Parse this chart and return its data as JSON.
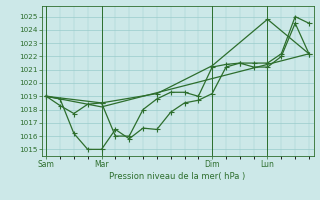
{
  "xlabel": "Pression niveau de la mer( hPa )",
  "bg_color": "#cce8e8",
  "grid_color": "#99cccc",
  "line_color": "#2d6e2d",
  "ylim": [
    1014.5,
    1025.8
  ],
  "yticks": [
    1015,
    1016,
    1017,
    1018,
    1019,
    1020,
    1021,
    1022,
    1023,
    1024,
    1025
  ],
  "xtick_labels": [
    "Sam",
    "Mar",
    "Dim",
    "Lun"
  ],
  "xtick_positions": [
    0,
    24,
    72,
    96
  ],
  "xlim": [
    -2,
    116
  ],
  "vlines": [
    0,
    24,
    72,
    96
  ],
  "line1_x": [
    0,
    6,
    12,
    18,
    24,
    30,
    36,
    42,
    48,
    54,
    60,
    66,
    72,
    78,
    84,
    90,
    96,
    102,
    108,
    114
  ],
  "line1_y": [
    1019.0,
    1018.3,
    1017.7,
    1018.4,
    1018.5,
    1016.0,
    1016.0,
    1018.0,
    1018.8,
    1019.3,
    1019.3,
    1019.0,
    1021.2,
    1021.4,
    1021.5,
    1021.2,
    1021.2,
    1022.0,
    1024.5,
    1022.2
  ],
  "line2_x": [
    0,
    6,
    12,
    18,
    24,
    30,
    36,
    42,
    48,
    54,
    60,
    66,
    72,
    78,
    84,
    90,
    96,
    102,
    108,
    114
  ],
  "line2_y": [
    1019.0,
    1018.8,
    1016.2,
    1015.0,
    1015.0,
    1016.5,
    1015.8,
    1016.6,
    1016.5,
    1017.8,
    1018.5,
    1018.7,
    1019.2,
    1021.2,
    1021.5,
    1021.5,
    1021.5,
    1022.2,
    1025.0,
    1024.5
  ],
  "line3_x": [
    0,
    24,
    48,
    72,
    96,
    114
  ],
  "line3_y": [
    1019.0,
    1018.5,
    1019.2,
    1021.3,
    1024.8,
    1022.2
  ],
  "line4_x": [
    0,
    24,
    114
  ],
  "line4_y": [
    1019.0,
    1018.2,
    1022.2
  ],
  "minor_xtick_step": 6
}
